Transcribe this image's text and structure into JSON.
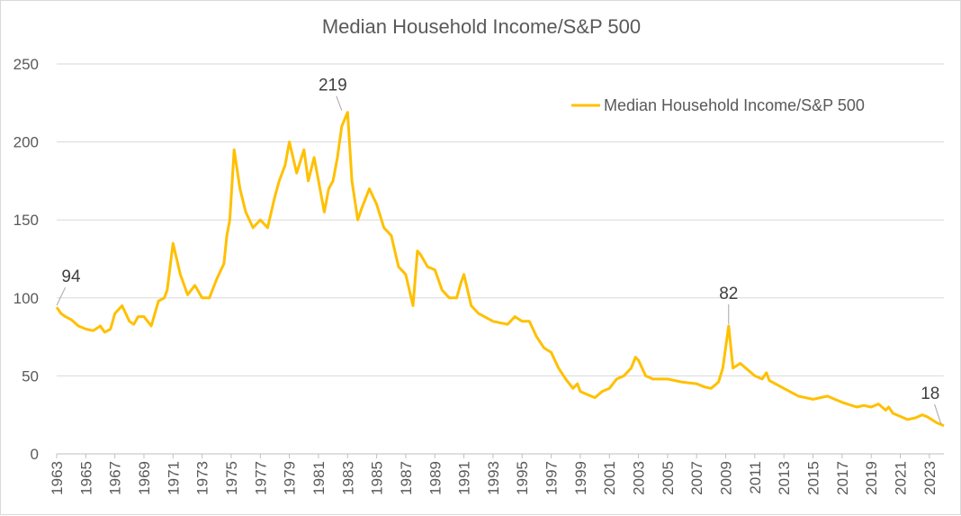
{
  "chart_data": {
    "type": "line",
    "title": "Median Household Income/S&P 500",
    "xlabel": "",
    "ylabel": "",
    "ylim": [
      0,
      250
    ],
    "xlim": [
      1963,
      2024
    ],
    "yticks": [
      0,
      50,
      100,
      150,
      200,
      250
    ],
    "xticks": [
      "1963",
      "1965",
      "1967",
      "1969",
      "1971",
      "1973",
      "1975",
      "1977",
      "1979",
      "1981",
      "1983",
      "1985",
      "1987",
      "1989",
      "1991",
      "1993",
      "1995",
      "1997",
      "1999",
      "2001",
      "2003",
      "2005",
      "2007",
      "2009",
      "2011",
      "2013",
      "2015",
      "2017",
      "2019",
      "2021",
      "2023"
    ],
    "grid": true,
    "legend": "top-right",
    "color": "#FFC000",
    "series": [
      {
        "name": "Median Household Income/S&P 500",
        "x": [
          1963.0,
          1963.3,
          1963.6,
          1964.0,
          1964.5,
          1965.0,
          1965.5,
          1966.0,
          1966.3,
          1966.7,
          1967.0,
          1967.5,
          1968.0,
          1968.3,
          1968.6,
          1969.0,
          1969.5,
          1970.0,
          1970.4,
          1970.6,
          1971.0,
          1971.5,
          1972.0,
          1972.5,
          1973.0,
          1973.5,
          1974.0,
          1974.5,
          1974.7,
          1974.9,
          1975.2,
          1975.6,
          1976.0,
          1976.5,
          1977.0,
          1977.5,
          1978.0,
          1978.3,
          1978.7,
          1979.0,
          1979.5,
          1980.0,
          1980.3,
          1980.7,
          1981.0,
          1981.4,
          1981.7,
          1982.0,
          1982.3,
          1982.6,
          1983.0,
          1983.3,
          1983.7,
          1984.0,
          1984.5,
          1985.0,
          1985.5,
          1986.0,
          1986.5,
          1987.0,
          1987.5,
          1987.8,
          1988.0,
          1988.5,
          1989.0,
          1989.5,
          1990.0,
          1990.5,
          1990.8,
          1991.0,
          1991.5,
          1992.0,
          1993.0,
          1994.0,
          1994.5,
          1995.0,
          1995.5,
          1996.0,
          1996.5,
          1997.0,
          1997.5,
          1998.0,
          1998.5,
          1998.8,
          1999.0,
          1999.5,
          2000.0,
          2000.5,
          2001.0,
          2001.5,
          2002.0,
          2002.5,
          2002.8,
          2003.0,
          2003.5,
          2004.0,
          2005.0,
          2006.0,
          2007.0,
          2007.5,
          2008.0,
          2008.5,
          2008.8,
          2009.2,
          2009.5,
          2010.0,
          2010.5,
          2011.0,
          2011.5,
          2011.8,
          2012.0,
          2013.0,
          2014.0,
          2015.0,
          2016.0,
          2016.5,
          2017.0,
          2018.0,
          2018.5,
          2019.0,
          2019.5,
          2020.0,
          2020.2,
          2020.5,
          2021.0,
          2021.5,
          2022.0,
          2022.5,
          2022.8,
          2023.0,
          2023.5,
          2024.0
        ],
        "values": [
          94,
          90,
          88,
          86,
          82,
          80,
          79,
          82,
          78,
          80,
          90,
          95,
          85,
          83,
          88,
          88,
          82,
          98,
          100,
          105,
          135,
          115,
          102,
          108,
          100,
          100,
          112,
          122,
          140,
          150,
          195,
          170,
          155,
          145,
          150,
          145,
          165,
          175,
          185,
          200,
          180,
          195,
          175,
          190,
          175,
          155,
          170,
          175,
          190,
          210,
          219,
          175,
          150,
          158,
          170,
          160,
          145,
          140,
          120,
          115,
          95,
          130,
          128,
          120,
          118,
          105,
          100,
          100,
          110,
          115,
          95,
          90,
          85,
          83,
          88,
          85,
          85,
          75,
          68,
          65,
          55,
          48,
          42,
          45,
          40,
          38,
          36,
          40,
          42,
          48,
          50,
          55,
          62,
          60,
          50,
          48,
          48,
          46,
          45,
          43,
          42,
          46,
          55,
          82,
          55,
          58,
          54,
          50,
          48,
          52,
          47,
          42,
          37,
          35,
          37,
          35,
          33,
          30,
          31,
          30,
          32,
          28,
          30,
          26,
          24,
          22,
          23,
          25,
          24,
          23,
          20,
          18
        ]
      }
    ],
    "annotations": [
      {
        "x": 1963,
        "y": 94,
        "label": "94"
      },
      {
        "x": 1982.6,
        "y": 219,
        "label": "219"
      },
      {
        "x": 2009.2,
        "y": 82,
        "label": "82"
      },
      {
        "x": 2023.8,
        "y": 18,
        "label": "18"
      }
    ]
  }
}
